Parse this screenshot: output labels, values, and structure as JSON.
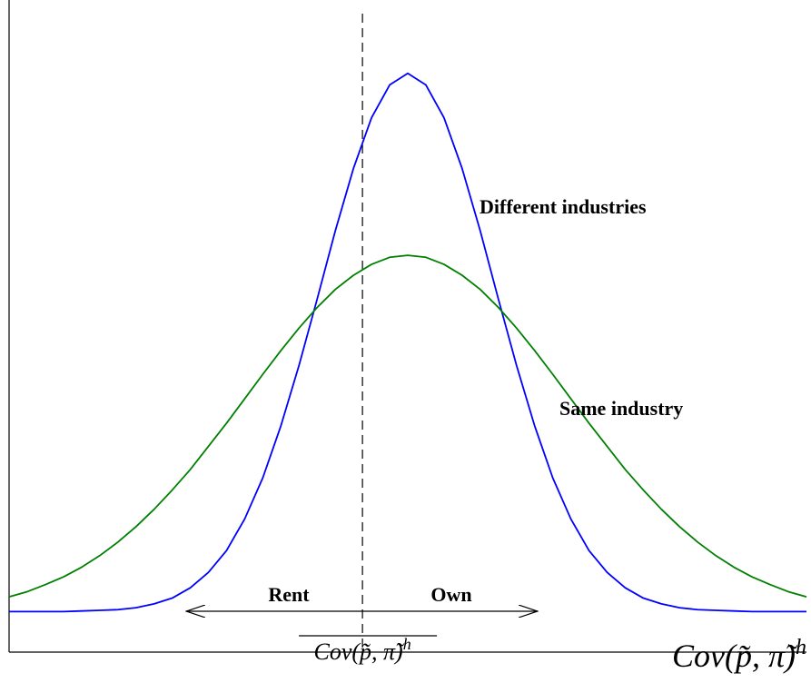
{
  "chart_data": {
    "type": "line",
    "x": [
      -4.4,
      -4.2,
      -4.0,
      -3.8,
      -3.6,
      -3.4,
      -3.2,
      -3.0,
      -2.8,
      -2.6,
      -2.4,
      -2.2,
      -2.0,
      -1.8,
      -1.6,
      -1.4,
      -1.2,
      -1.0,
      -0.8,
      -0.6,
      -0.4,
      -0.2,
      0,
      0.2,
      0.4,
      0.6,
      0.8,
      1.0,
      1.2,
      1.4,
      1.6,
      1.8,
      2.0,
      2.2,
      2.4,
      2.6,
      2.8,
      3.0,
      3.2,
      3.4,
      3.6,
      3.8,
      4.0,
      4.2,
      4.4
    ],
    "series": [
      {
        "name": "Different industries",
        "color": "#0000ff",
        "values": [
          0.063,
          0.063,
          0.063,
          0.063,
          0.064,
          0.065,
          0.066,
          0.069,
          0.075,
          0.084,
          0.1,
          0.124,
          0.158,
          0.207,
          0.271,
          0.352,
          0.446,
          0.549,
          0.655,
          0.752,
          0.831,
          0.882,
          0.9,
          0.882,
          0.831,
          0.752,
          0.655,
          0.549,
          0.446,
          0.352,
          0.271,
          0.207,
          0.158,
          0.124,
          0.1,
          0.084,
          0.075,
          0.069,
          0.066,
          0.065,
          0.064,
          0.063,
          0.063,
          0.063,
          0.063
        ]
      },
      {
        "name": "Same industry",
        "color": "#008000",
        "values": [
          0.086,
          0.094,
          0.105,
          0.117,
          0.132,
          0.15,
          0.171,
          0.195,
          0.222,
          0.252,
          0.284,
          0.32,
          0.356,
          0.394,
          0.432,
          0.469,
          0.504,
          0.536,
          0.564,
          0.586,
          0.603,
          0.614,
          0.617,
          0.614,
          0.603,
          0.586,
          0.564,
          0.536,
          0.504,
          0.469,
          0.432,
          0.394,
          0.356,
          0.32,
          0.284,
          0.252,
          0.222,
          0.195,
          0.171,
          0.15,
          0.132,
          0.117,
          0.105,
          0.094,
          0.086
        ]
      }
    ],
    "xlim": [
      -4.4,
      4.4
    ],
    "ylim": [
      0,
      1
    ],
    "x_label": {
      "base": "Cov(p̃, π̃)",
      "sup": "h"
    },
    "threshold": {
      "value": -0.5,
      "label": {
        "base": "Cov(p̃, π̃)",
        "sup": "h"
      }
    },
    "annotations": [
      "Rent",
      "Own"
    ]
  }
}
